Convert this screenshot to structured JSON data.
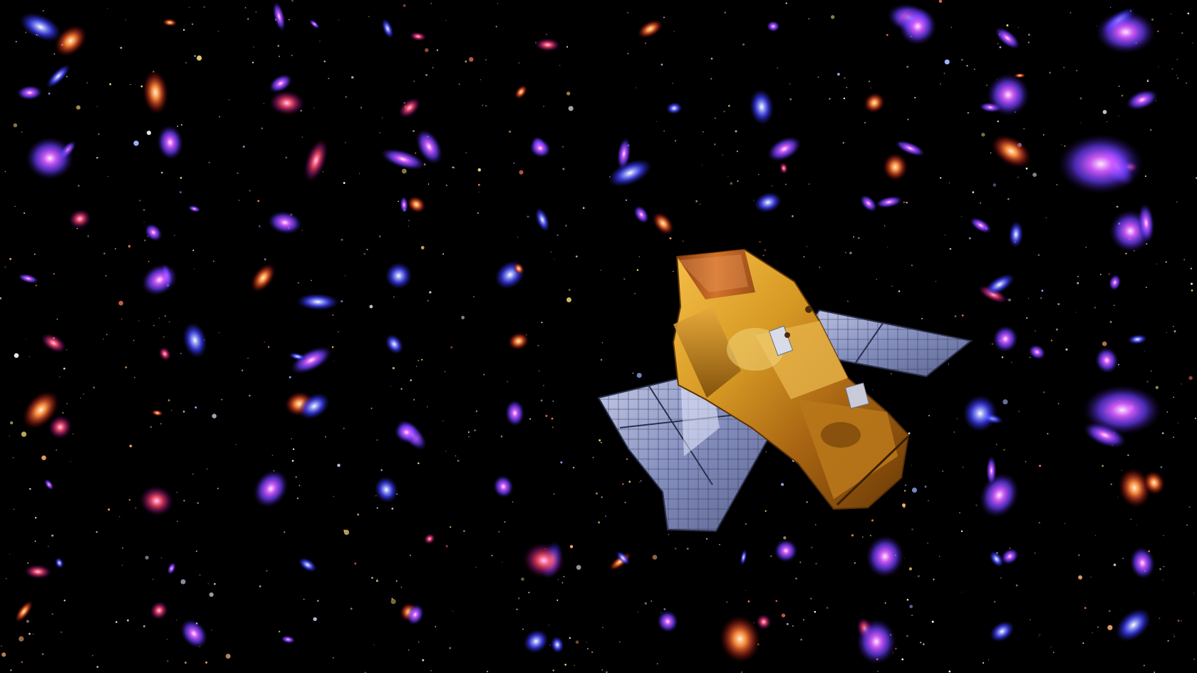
{
  "image": {
    "subject": "spacecraft-over-galaxy-field",
    "background": "#000000"
  },
  "colors": {
    "space": "#000000",
    "galaxy_blue": "#3a3cff",
    "galaxy_violet": "#8a4dff",
    "galaxy_magenta": "#d65cff",
    "galaxy_orange": "#ff8a3a",
    "galaxy_red": "#ff4a3a",
    "star_white": "#ffffff",
    "star_yellow": "#ffe27a",
    "gold_foil": "#d79a24",
    "gold_dark": "#7a4a0a",
    "solar_panel": "#7f89b8",
    "solar_panel_light": "#b9c1e4",
    "solar_grid": "#2b3150"
  },
  "objects": [
    {
      "name": "galaxy-field-background",
      "icon": "starfield"
    },
    {
      "name": "spacecraft",
      "icon": "satellite-icon"
    },
    {
      "name": "left-solar-panel",
      "icon": "solar-panel-icon"
    },
    {
      "name": "right-solar-panel",
      "icon": "solar-panel-icon"
    }
  ]
}
